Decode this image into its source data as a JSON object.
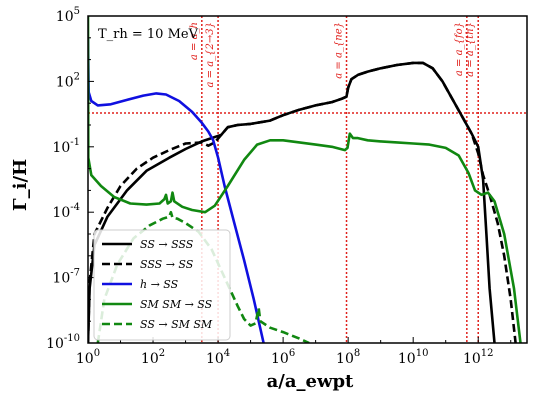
{
  "chart_data": {
    "type": "line",
    "title": "",
    "xlabel": "a/a_ewpt",
    "ylabel": "Γ_i/H",
    "x_scale": "log",
    "y_scale": "log",
    "xlim_log10": [
      0,
      13.5
    ],
    "ylim_log10": [
      -10,
      5
    ],
    "x_ticks": [
      "10^0",
      "10^2",
      "10^4",
      "10^6",
      "10^8",
      "10^10",
      "10^12"
    ],
    "y_ticks": [
      "10^-10",
      "10^-7",
      "10^-4",
      "10^-1",
      "10^2",
      "10^5"
    ],
    "x_tick_exponents": [
      0,
      2,
      4,
      6,
      8,
      10,
      12
    ],
    "y_tick_exponents": [
      -10,
      -7,
      -4,
      -1,
      2,
      5
    ],
    "annotation_text": "T_rh = 10 MeV",
    "legend_position": "lower-left",
    "series": [
      {
        "name": "SS → SSS",
        "color": "#000000",
        "dash": "solid",
        "points_log10": [
          [
            0.0,
            -10
          ],
          [
            0.05,
            -7.5
          ],
          [
            0.2,
            -5.5
          ],
          [
            0.6,
            -4.2
          ],
          [
            1.2,
            -3.0
          ],
          [
            1.8,
            -2.1
          ],
          [
            2.5,
            -1.5
          ],
          [
            3.0,
            -1.1
          ],
          [
            3.5,
            -0.75
          ],
          [
            3.8,
            -0.6
          ],
          [
            4.1,
            -0.45
          ],
          [
            4.3,
            -0.1
          ],
          [
            4.6,
            0.0
          ],
          [
            5.0,
            0.05
          ],
          [
            5.6,
            0.2
          ],
          [
            6.0,
            0.45
          ],
          [
            6.5,
            0.7
          ],
          [
            7.0,
            0.9
          ],
          [
            7.5,
            1.05
          ],
          [
            7.8,
            1.2
          ],
          [
            7.95,
            1.3
          ],
          [
            8.0,
            1.7
          ],
          [
            8.1,
            2.1
          ],
          [
            8.3,
            2.3
          ],
          [
            8.6,
            2.45
          ],
          [
            9.0,
            2.6
          ],
          [
            9.5,
            2.75
          ],
          [
            10.0,
            2.85
          ],
          [
            10.3,
            2.85
          ],
          [
            10.6,
            2.6
          ],
          [
            10.9,
            2.0
          ],
          [
            11.2,
            1.2
          ],
          [
            11.5,
            0.4
          ],
          [
            11.8,
            -0.4
          ],
          [
            12.0,
            -1.0
          ],
          [
            12.15,
            -2.5
          ],
          [
            12.25,
            -5.0
          ],
          [
            12.35,
            -7.5
          ],
          [
            12.5,
            -10
          ]
        ]
      },
      {
        "name": "SSS → SS",
        "color": "#000000",
        "dash": "dashed",
        "points_log10": [
          [
            0.0,
            -10
          ],
          [
            0.05,
            -7.2
          ],
          [
            0.2,
            -5.0
          ],
          [
            0.6,
            -3.8
          ],
          [
            1.0,
            -2.8
          ],
          [
            1.5,
            -2.0
          ],
          [
            2.0,
            -1.5
          ],
          [
            2.5,
            -1.15
          ],
          [
            3.0,
            -0.85
          ],
          [
            3.5,
            -0.8
          ],
          [
            3.7,
            -0.95
          ],
          [
            3.9,
            -0.8
          ],
          [
            4.1,
            -0.45
          ],
          [
            4.3,
            -0.1
          ],
          [
            4.6,
            0.0
          ],
          [
            5.0,
            0.05
          ],
          [
            5.6,
            0.2
          ],
          [
            6.0,
            0.45
          ],
          [
            6.5,
            0.7
          ],
          [
            7.0,
            0.9
          ],
          [
            7.5,
            1.05
          ],
          [
            7.8,
            1.2
          ],
          [
            7.95,
            1.3
          ],
          [
            8.0,
            1.7
          ],
          [
            8.1,
            2.1
          ],
          [
            8.3,
            2.3
          ],
          [
            8.6,
            2.45
          ],
          [
            9.0,
            2.6
          ],
          [
            9.5,
            2.75
          ],
          [
            10.0,
            2.85
          ],
          [
            10.3,
            2.85
          ],
          [
            10.6,
            2.6
          ],
          [
            10.9,
            2.0
          ],
          [
            11.2,
            1.2
          ],
          [
            11.5,
            0.4
          ],
          [
            11.8,
            -0.4
          ],
          [
            12.0,
            -1.3
          ],
          [
            12.15,
            -2.3
          ],
          [
            12.35,
            -3.2
          ],
          [
            12.6,
            -4.5
          ],
          [
            12.8,
            -6.0
          ],
          [
            13.0,
            -8.0
          ],
          [
            13.15,
            -10
          ]
        ]
      },
      {
        "name": "h → SS",
        "color": "#1010e0",
        "dash": "solid",
        "points_log10": [
          [
            0.0,
            4.0
          ],
          [
            0.02,
            1.5
          ],
          [
            0.1,
            1.1
          ],
          [
            0.3,
            0.9
          ],
          [
            0.7,
            0.95
          ],
          [
            1.2,
            1.15
          ],
          [
            1.7,
            1.35
          ],
          [
            2.1,
            1.45
          ],
          [
            2.4,
            1.4
          ],
          [
            2.8,
            1.1
          ],
          [
            3.2,
            0.6
          ],
          [
            3.5,
            0.1
          ],
          [
            3.7,
            -0.3
          ],
          [
            3.85,
            -0.7
          ],
          [
            4.0,
            -1.5
          ],
          [
            4.2,
            -2.8
          ],
          [
            4.5,
            -4.5
          ],
          [
            4.8,
            -6.2
          ],
          [
            5.1,
            -8.0
          ],
          [
            5.4,
            -10
          ]
        ]
      },
      {
        "name": "SM SM → SS",
        "color": "#118811",
        "dash": "solid",
        "points_log10": [
          [
            0.0,
            5.0
          ],
          [
            0.01,
            -1.5
          ],
          [
            0.1,
            -2.3
          ],
          [
            0.4,
            -2.8
          ],
          [
            0.8,
            -3.3
          ],
          [
            1.3,
            -3.6
          ],
          [
            1.8,
            -3.65
          ],
          [
            2.2,
            -3.6
          ],
          [
            2.35,
            -3.4
          ],
          [
            2.4,
            -3.2
          ],
          [
            2.45,
            -3.6
          ],
          [
            2.55,
            -3.5
          ],
          [
            2.6,
            -3.1
          ],
          [
            2.65,
            -3.5
          ],
          [
            2.9,
            -3.75
          ],
          [
            3.2,
            -3.9
          ],
          [
            3.6,
            -4.0
          ],
          [
            3.9,
            -3.7
          ],
          [
            4.3,
            -2.8
          ],
          [
            4.8,
            -1.6
          ],
          [
            5.2,
            -0.9
          ],
          [
            5.6,
            -0.7
          ],
          [
            6.0,
            -0.7
          ],
          [
            6.5,
            -0.8
          ],
          [
            7.0,
            -0.9
          ],
          [
            7.5,
            -1.0
          ],
          [
            7.9,
            -1.15
          ],
          [
            7.98,
            -1.05
          ],
          [
            8.05,
            -0.4
          ],
          [
            8.15,
            -0.6
          ],
          [
            8.3,
            -0.6
          ],
          [
            8.6,
            -0.7
          ],
          [
            9.0,
            -0.75
          ],
          [
            9.5,
            -0.8
          ],
          [
            10.0,
            -0.85
          ],
          [
            10.5,
            -0.9
          ],
          [
            11.0,
            -1.05
          ],
          [
            11.4,
            -1.4
          ],
          [
            11.7,
            -2.2
          ],
          [
            11.9,
            -3.0
          ],
          [
            12.1,
            -3.2
          ],
          [
            12.3,
            -3.1
          ],
          [
            12.5,
            -3.5
          ],
          [
            12.8,
            -5.0
          ],
          [
            13.1,
            -7.5
          ],
          [
            13.3,
            -10
          ]
        ]
      },
      {
        "name": "SS → SM SM",
        "color": "#118811",
        "dash": "dashed",
        "points_log10": [
          [
            0.3,
            -10
          ],
          [
            0.5,
            -8.0
          ],
          [
            0.9,
            -6.4
          ],
          [
            1.4,
            -5.2
          ],
          [
            1.9,
            -4.6
          ],
          [
            2.3,
            -4.3
          ],
          [
            2.5,
            -4.2
          ],
          [
            2.55,
            -4.0
          ],
          [
            2.6,
            -4.25
          ],
          [
            2.75,
            -4.3
          ],
          [
            3.0,
            -4.5
          ],
          [
            3.4,
            -4.9
          ],
          [
            3.8,
            -5.7
          ],
          [
            4.2,
            -7.0
          ],
          [
            4.6,
            -8.3
          ],
          [
            4.8,
            -8.9
          ],
          [
            5.0,
            -9.2
          ],
          [
            5.15,
            -9.1
          ],
          [
            5.25,
            -8.4
          ],
          [
            5.3,
            -9.0
          ],
          [
            5.6,
            -9.3
          ],
          [
            6.0,
            -9.5
          ],
          [
            6.5,
            -9.8
          ],
          [
            6.8,
            -10
          ]
        ]
      }
    ],
    "hline_log10": 0.55,
    "vlines": [
      {
        "label": "a = a_h",
        "x_log10": 3.5
      },
      {
        "label": "a = a_{2→3}",
        "x_log10": 4.0
      },
      {
        "label": "a = a_{ne}",
        "x_log10": 7.95
      },
      {
        "label": "a = a_{fo}",
        "x_log10": 11.65
      },
      {
        "label": "a = a_{th}",
        "x_log10": 12.0
      }
    ]
  }
}
